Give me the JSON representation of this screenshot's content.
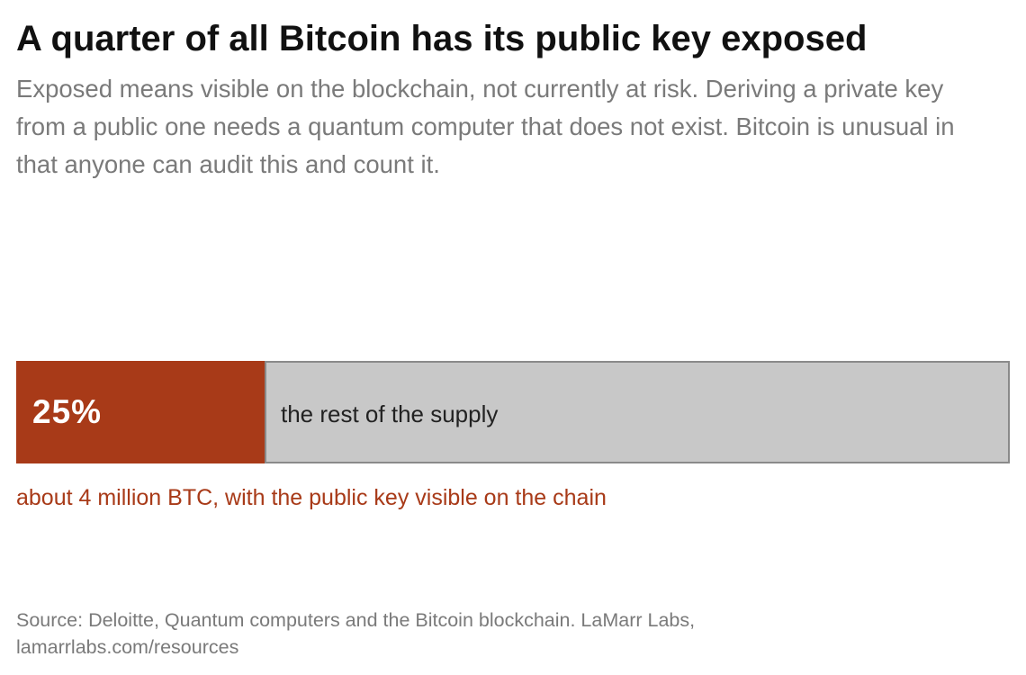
{
  "header": {
    "title": "A quarter of all Bitcoin has its public key exposed",
    "subtitle": "Exposed means visible on the blockchain, not currently at risk. Deriving a private key from a public one needs a quantum computer that does not exist. Bitcoin is unusual in that anyone can audit this and count it."
  },
  "chart_data": {
    "type": "bar",
    "orientation": "horizontal-stacked",
    "categories": [
      "25%",
      "the rest of the supply"
    ],
    "values": [
      25,
      75
    ],
    "unit": "%",
    "segment_labels": {
      "exposed": "25%",
      "rest": "the rest of the supply"
    },
    "annotation": "about 4 million BTC, with the public key visible on the chain",
    "colors": {
      "exposed": "#a83a18",
      "rest": "#c8c8c8",
      "rest_border": "#8a8a8a"
    }
  },
  "footer": {
    "source_line1": "Source: Deloitte, Quantum computers and the Bitcoin blockchain. LaMarr Labs,",
    "source_line2": "lamarrlabs.com/resources"
  }
}
